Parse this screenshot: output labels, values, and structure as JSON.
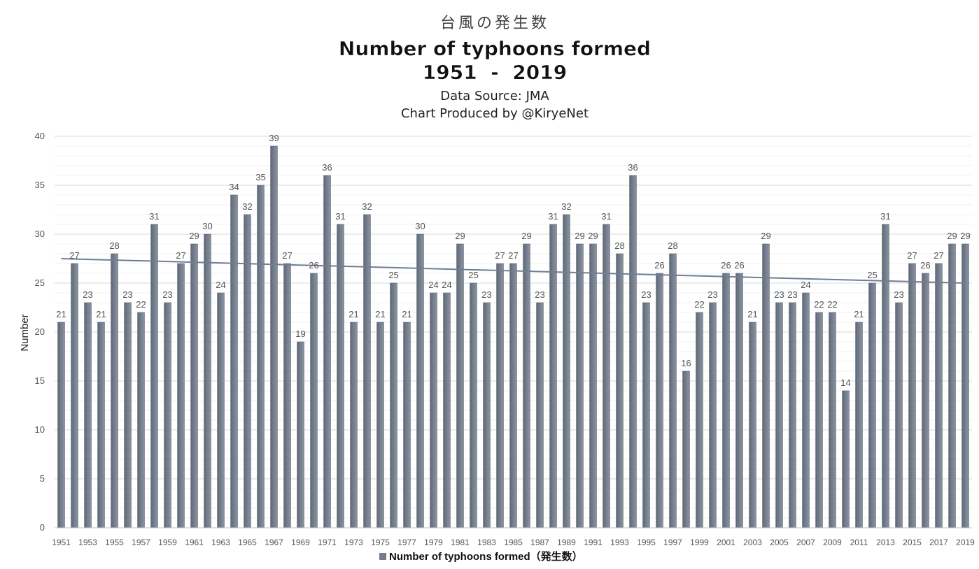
{
  "chart_data": {
    "type": "bar",
    "title_jp": "台風の発生数",
    "title": "Number of typhoons formed",
    "period": "1951  -  2019",
    "source": "Data Source: JMA",
    "credit": "Chart Produced by @KiryeNet",
    "ylabel": "Number",
    "xlabel": "",
    "ylim": [
      0,
      40
    ],
    "yticks": [
      0,
      5,
      10,
      15,
      20,
      25,
      30,
      35,
      40
    ],
    "grid": true,
    "legend_position": "bottom",
    "legend_label": "Number of typhoons formed（発生数）",
    "bar_color": "#737d8c",
    "trendline_color": "#6e7f93",
    "trendline": {
      "start": 27.5,
      "end": 25.0
    },
    "categories": [
      "1951",
      "1952",
      "1953",
      "1954",
      "1955",
      "1956",
      "1957",
      "1958",
      "1959",
      "1960",
      "1961",
      "1962",
      "1963",
      "1964",
      "1965",
      "1966",
      "1967",
      "1968",
      "1969",
      "1970",
      "1971",
      "1972",
      "1973",
      "1974",
      "1975",
      "1976",
      "1977",
      "1978",
      "1979",
      "1980",
      "1981",
      "1982",
      "1983",
      "1984",
      "1985",
      "1986",
      "1987",
      "1988",
      "1989",
      "1990",
      "1991",
      "1992",
      "1993",
      "1994",
      "1995",
      "1996",
      "1997",
      "1998",
      "1999",
      "2000",
      "2001",
      "2002",
      "2003",
      "2004",
      "2005",
      "2006",
      "2007",
      "2008",
      "2009",
      "2010",
      "2011",
      "2012",
      "2013",
      "2014",
      "2015",
      "2016",
      "2017",
      "2018",
      "2019"
    ],
    "values": [
      21,
      27,
      23,
      21,
      28,
      23,
      22,
      31,
      23,
      27,
      29,
      30,
      24,
      34,
      32,
      35,
      39,
      27,
      19,
      26,
      36,
      31,
      21,
      32,
      21,
      25,
      21,
      30,
      24,
      24,
      29,
      25,
      23,
      27,
      27,
      29,
      23,
      31,
      32,
      29,
      29,
      31,
      28,
      36,
      23,
      26,
      28,
      16,
      22,
      23,
      26,
      26,
      21,
      29,
      23,
      23,
      24,
      22,
      22,
      14,
      21,
      25,
      31,
      23,
      27,
      26,
      27,
      29,
      29
    ],
    "x_tick_labels": [
      "1951",
      "1953",
      "1955",
      "1957",
      "1959",
      "1961",
      "1963",
      "1965",
      "1967",
      "1969",
      "1971",
      "1973",
      "1975",
      "1977",
      "1979",
      "1981",
      "1983",
      "1985",
      "1987",
      "1989",
      "1991",
      "1993",
      "1995",
      "1997",
      "1999",
      "2001",
      "2003",
      "2005",
      "2007",
      "2009",
      "2011",
      "2013",
      "2015",
      "2017",
      "2019"
    ]
  }
}
